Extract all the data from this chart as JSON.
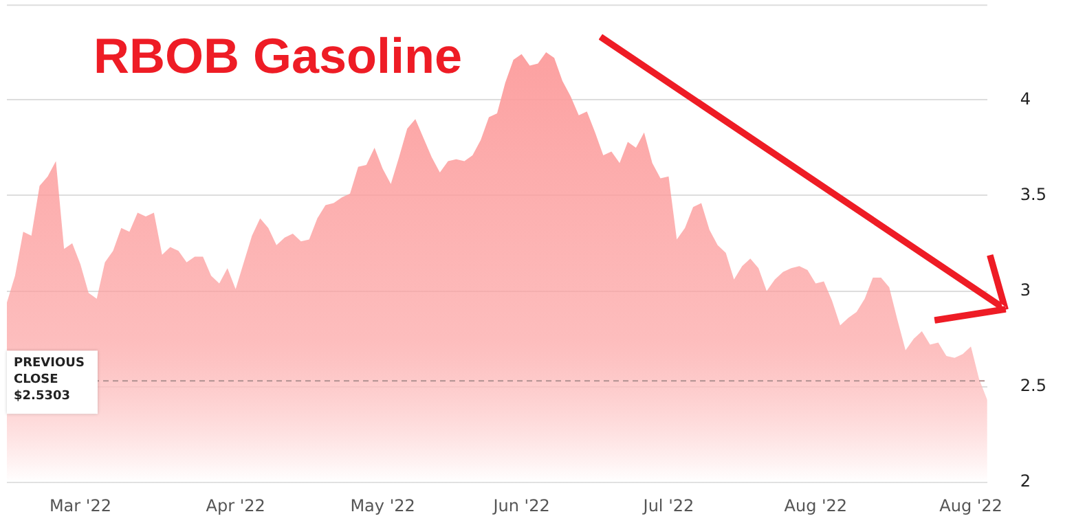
{
  "chart_data": {
    "type": "area",
    "title": "RBOB Gasoline",
    "categories": [
      null,
      null,
      null,
      null,
      null,
      null,
      null,
      null,
      null,
      "Mar '22",
      null,
      null,
      null,
      null,
      null,
      null,
      null,
      null,
      null,
      null,
      null,
      null,
      null,
      null,
      null,
      null,
      null,
      null,
      "Apr '22",
      null,
      null,
      null,
      null,
      null,
      null,
      null,
      null,
      null,
      null,
      null,
      null,
      null,
      null,
      null,
      null,
      null,
      "May '22",
      null,
      null,
      null,
      null,
      null,
      null,
      null,
      null,
      null,
      null,
      null,
      null,
      null,
      null,
      null,
      null,
      "Jun '22",
      null,
      null,
      null,
      null,
      null,
      null,
      null,
      null,
      null,
      null,
      null,
      null,
      null,
      null,
      null,
      null,
      null,
      "Jul '22",
      null,
      null,
      null,
      null,
      null,
      null,
      null,
      null,
      null,
      null,
      null,
      null,
      null,
      null,
      null,
      null,
      null,
      "Aug '22",
      null,
      null,
      null,
      null,
      null,
      null,
      null,
      null,
      null,
      null,
      null,
      null,
      null,
      null,
      null,
      null,
      null,
      null,
      "Aug '22",
      null,
      null
    ],
    "series": [
      {
        "color": "#fc9c9c",
        "values": [
          2.94,
          3.08,
          3.31,
          3.29,
          3.55,
          3.6,
          3.68,
          3.22,
          3.25,
          3.14,
          2.99,
          2.96,
          3.15,
          3.21,
          3.33,
          3.31,
          3.41,
          3.39,
          3.41,
          3.19,
          3.23,
          3.21,
          3.15,
          3.18,
          3.18,
          3.08,
          3.04,
          3.12,
          3.01,
          3.15,
          3.29,
          3.38,
          3.33,
          3.24,
          3.28,
          3.3,
          3.26,
          3.27,
          3.38,
          3.45,
          3.46,
          3.49,
          3.51,
          3.65,
          3.66,
          3.75,
          3.64,
          3.56,
          3.7,
          3.85,
          3.9,
          3.8,
          3.7,
          3.62,
          3.68,
          3.69,
          3.68,
          3.71,
          3.79,
          3.91,
          3.93,
          4.09,
          4.21,
          4.24,
          4.18,
          4.19,
          4.25,
          4.22,
          4.1,
          4.02,
          3.92,
          3.94,
          3.83,
          3.71,
          3.73,
          3.67,
          3.78,
          3.75,
          3.83,
          3.67,
          3.59,
          3.6,
          3.27,
          3.33,
          3.44,
          3.46,
          3.32,
          3.24,
          3.2,
          3.06,
          3.13,
          3.17,
          3.12,
          3.0,
          3.06,
          3.1,
          3.12,
          3.13,
          3.11,
          3.04,
          3.05,
          2.95,
          2.82,
          2.86,
          2.89,
          2.96,
          3.07,
          3.07,
          3.02,
          2.85,
          2.69,
          2.75,
          2.79,
          2.72,
          2.73,
          2.66,
          2.65,
          2.67,
          2.71,
          2.54,
          2.43
        ]
      }
    ],
    "ylim": [
      2,
      4.5
    ],
    "yticks": [
      2,
      2.5,
      3,
      3.5,
      4
    ],
    "grid": "y",
    "ref_lines": [
      {
        "axis": "y",
        "value": 2.5303,
        "label": "PREVIOUS CLOSE $2.5303",
        "color": "#b09090",
        "line_style": "dashed"
      }
    ]
  }
}
